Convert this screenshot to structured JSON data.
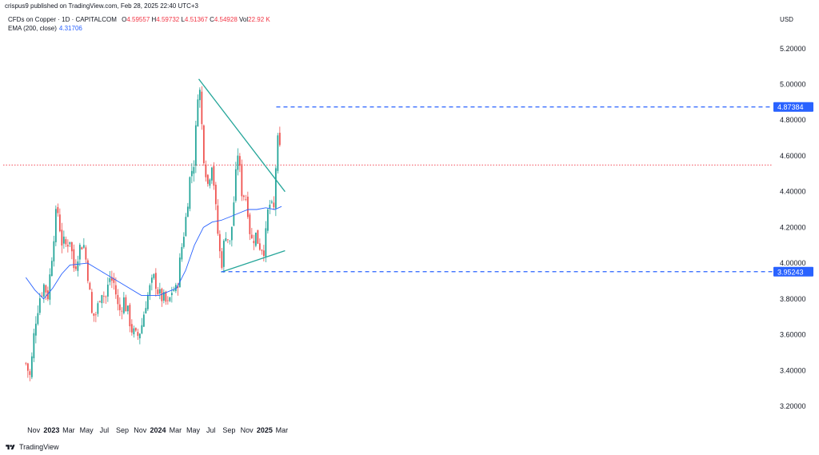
{
  "header": {
    "published_line": "crispus9 published on TradingView.com, Feb 28, 2025 22:40 UTC+3",
    "symbol": "CFDs on Copper · 1D · CAPITALCOM",
    "ohlc": [
      {
        "k": "O",
        "v": "4.59557"
      },
      {
        "k": "H",
        "v": "4.59732"
      },
      {
        "k": "L",
        "v": "4.51367"
      },
      {
        "k": "C",
        "v": "4.54928"
      },
      {
        "k": "Vol",
        "v": "22.92 K"
      }
    ],
    "ema_label": "EMA (200, close)",
    "ema_value": "4.31706",
    "currency": "USD"
  },
  "footer": {
    "brand": "TradingView"
  },
  "colors": {
    "up": "#26a69a",
    "down": "#ef5350",
    "ema": "#2962ff",
    "trend": "#26a69a",
    "level": "#2962ff",
    "current_price": "#f23645"
  },
  "chart_data": {
    "type": "candlestick",
    "y_ticks": [
      "5.20000",
      "5.00000",
      "4.80000",
      "4.60000",
      "4.40000",
      "4.20000",
      "4.00000",
      "3.80000",
      "3.60000",
      "3.40000",
      "3.20000"
    ],
    "ylim": [
      3.2,
      5.2
    ],
    "x_ticks": [
      "Nov",
      "2023",
      "Mar",
      "May",
      "Jul",
      "Sep",
      "Nov",
      "2024",
      "Mar",
      "May",
      "Jul",
      "Sep",
      "Nov",
      "2025",
      "Mar"
    ],
    "x_ticks_bold": [
      "2023",
      "2024",
      "2025"
    ],
    "series_close": [
      [
        "2022-10-05",
        3.44
      ],
      [
        "2022-10-20",
        3.36
      ],
      [
        "2022-11-05",
        3.66
      ],
      [
        "2022-11-20",
        3.8
      ],
      [
        "2022-12-05",
        3.88
      ],
      [
        "2022-12-20",
        3.82
      ],
      [
        "2023-01-10",
        4.18
      ],
      [
        "2023-01-20",
        4.32
      ],
      [
        "2023-02-05",
        4.12
      ],
      [
        "2023-02-20",
        4.1
      ],
      [
        "2023-03-05",
        4.14
      ],
      [
        "2023-03-20",
        3.96
      ],
      [
        "2023-04-05",
        4.08
      ],
      [
        "2023-04-20",
        4.12
      ],
      [
        "2023-05-05",
        3.95
      ],
      [
        "2023-05-20",
        3.7
      ],
      [
        "2023-06-05",
        3.72
      ],
      [
        "2023-06-20",
        3.86
      ],
      [
        "2023-07-05",
        3.8
      ],
      [
        "2023-07-20",
        3.92
      ],
      [
        "2023-08-05",
        3.88
      ],
      [
        "2023-08-20",
        3.72
      ],
      [
        "2023-09-05",
        3.8
      ],
      [
        "2023-09-20",
        3.72
      ],
      [
        "2023-10-05",
        3.62
      ],
      [
        "2023-10-20",
        3.58
      ],
      [
        "2023-11-05",
        3.64
      ],
      [
        "2023-11-20",
        3.78
      ],
      [
        "2023-12-05",
        3.86
      ],
      [
        "2023-12-20",
        3.92
      ],
      [
        "2024-01-05",
        3.82
      ],
      [
        "2024-01-20",
        3.8
      ],
      [
        "2024-02-05",
        3.76
      ],
      [
        "2024-02-20",
        3.86
      ],
      [
        "2024-03-05",
        3.84
      ],
      [
        "2024-03-20",
        4.06
      ],
      [
        "2024-04-05",
        4.24
      ],
      [
        "2024-04-20",
        4.48
      ],
      [
        "2024-05-05",
        4.58
      ],
      [
        "2024-05-20",
        5.06
      ],
      [
        "2024-06-05",
        4.62
      ],
      [
        "2024-06-20",
        4.44
      ],
      [
        "2024-07-05",
        4.58
      ],
      [
        "2024-07-20",
        4.24
      ],
      [
        "2024-08-05",
        3.98
      ],
      [
        "2024-08-20",
        4.18
      ],
      [
        "2024-09-05",
        4.1
      ],
      [
        "2024-09-20",
        4.4
      ],
      [
        "2024-10-01",
        4.62
      ],
      [
        "2024-10-15",
        4.4
      ],
      [
        "2024-11-01",
        4.36
      ],
      [
        "2024-11-15",
        4.12
      ],
      [
        "2024-12-01",
        4.16
      ],
      [
        "2024-12-15",
        4.1
      ],
      [
        "2025-01-01",
        4.08
      ],
      [
        "2025-01-15",
        4.34
      ],
      [
        "2025-02-01",
        4.28
      ],
      [
        "2025-02-10",
        4.6
      ],
      [
        "2025-02-17",
        4.7
      ],
      [
        "2025-02-28",
        4.55
      ]
    ],
    "ema200": [
      [
        "2022-10-05",
        3.92
      ],
      [
        "2022-11-05",
        3.85
      ],
      [
        "2022-12-05",
        3.8
      ],
      [
        "2023-01-05",
        3.86
      ],
      [
        "2023-02-05",
        3.94
      ],
      [
        "2023-03-05",
        3.99
      ],
      [
        "2023-05-05",
        4.0
      ],
      [
        "2023-07-05",
        3.94
      ],
      [
        "2023-09-05",
        3.88
      ],
      [
        "2023-11-05",
        3.82
      ],
      [
        "2024-01-05",
        3.82
      ],
      [
        "2024-03-05",
        3.86
      ],
      [
        "2024-04-05",
        3.96
      ],
      [
        "2024-05-05",
        4.1
      ],
      [
        "2024-06-05",
        4.2
      ],
      [
        "2024-07-05",
        4.23
      ],
      [
        "2024-08-05",
        4.24
      ],
      [
        "2024-09-05",
        4.26
      ],
      [
        "2024-10-05",
        4.28
      ],
      [
        "2024-11-05",
        4.3
      ],
      [
        "2024-12-05",
        4.3
      ],
      [
        "2025-01-05",
        4.31
      ],
      [
        "2025-02-05",
        4.3
      ],
      [
        "2025-02-28",
        4.317
      ]
    ],
    "trendlines": [
      {
        "from": [
          "2024-05-20",
          5.03
        ],
        "to": [
          "2025-03-12",
          4.4
        ]
      },
      {
        "from": [
          "2024-08-05",
          3.95
        ],
        "to": [
          "2025-03-12",
          4.07
        ]
      }
    ],
    "levels": [
      {
        "value": 4.87384,
        "label": "4.87384",
        "from": "2025-02-10"
      },
      {
        "value": 3.95243,
        "label": "3.95243",
        "from": "2024-08-05"
      }
    ],
    "current_price": 4.54928
  }
}
